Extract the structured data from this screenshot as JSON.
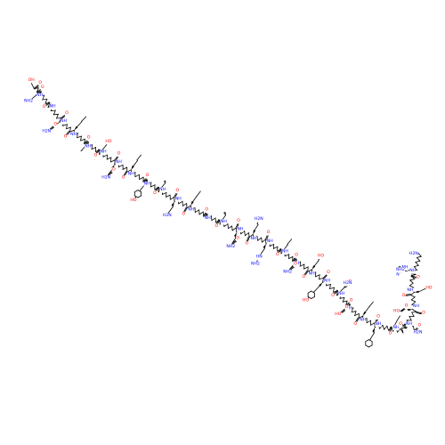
{
  "image_kind": "skeletal structural formula of a linear peptide",
  "colors": {
    "background": "#ffffff",
    "bond": "#000000",
    "oxygen": "#ff0000",
    "nitrogen": "#0000ff"
  },
  "labels": {
    "carboxyl_oh": "OH",
    "carbonyl_o": "O",
    "amine_nh": "NH",
    "amine_n": "N",
    "amine_h2n": "H2N",
    "amine_nh2": "NH2",
    "hydroxyl_oh": "HO",
    "guanidine_hn": "HN",
    "imidazole_nh": "NH"
  },
  "backbone": [
    {
      "kind": "C-terminal carboxyl",
      "o1": "OH",
      "o2": "O"
    },
    {
      "kind": "residue",
      "side": "aminobutyl",
      "amine": "NH2"
    },
    {
      "kind": "residue",
      "side": "none"
    },
    {
      "kind": "residue",
      "side": "carboxamidomethyl",
      "amine": "H2N"
    },
    {
      "kind": "residue",
      "side": "isobutyl"
    },
    {
      "kind": "residue",
      "side": "sec-butyl"
    },
    {
      "kind": "residue",
      "side": "hydroxymethyl",
      "hydroxyl": "HO"
    },
    {
      "kind": "residue",
      "side": "carboxamidomethyl",
      "amine": "H2N"
    },
    {
      "kind": "residue",
      "side": "isobutyl"
    },
    {
      "kind": "residue",
      "side": "4-hydroxybenzyl",
      "hydroxyl": "HO"
    },
    {
      "kind": "residue",
      "side": "alkenyl chain (alpha-methyl)"
    },
    {
      "kind": "residue",
      "side": "aminobutyl",
      "amine": "H2N"
    },
    {
      "kind": "residue",
      "side": "isopropyl"
    },
    {
      "kind": "residue",
      "side": "methyl"
    },
    {
      "kind": "residue",
      "side": "alkenyl chain (alpha-methyl)"
    },
    {
      "kind": "residue",
      "side": "carboxamidoethyl",
      "amine": "NH2"
    },
    {
      "kind": "residue",
      "side": "aminobutyl",
      "amine": "H2N"
    },
    {
      "kind": "residue",
      "side": "guanidinopropyl",
      "amine": "NH2",
      "imine": "HN"
    },
    {
      "kind": "residue",
      "side": "isobutyl"
    },
    {
      "kind": "residue",
      "side": "carboxamidoethyl",
      "amine": "NH2"
    },
    {
      "kind": "residue",
      "side": "1-hydroxyethyl",
      "hydroxyl": "HO"
    },
    {
      "kind": "residue",
      "side": "4-hydroxybenzyl",
      "hydroxyl": "HO"
    },
    {
      "kind": "residue",
      "side": "carboxamidomethyl",
      "amine": "H2N"
    },
    {
      "kind": "residue",
      "side": "carboxymethyl",
      "hydroxyl": "HO"
    },
    {
      "kind": "residue",
      "side": "isopropyl"
    },
    {
      "kind": "residue",
      "side": "benzyl"
    },
    {
      "kind": "residue",
      "side": "isopropyl"
    },
    {
      "kind": "residue",
      "side": "carboxamidomethyl",
      "amine": "H2N"
    },
    {
      "kind": "residue",
      "side": "carboxymethyl",
      "hydroxyl": "HO"
    },
    {
      "kind": "residue",
      "side": "hydroxymethyl",
      "hydroxyl": "HO"
    },
    {
      "kind": "N-terminal residue",
      "side": "imidazolylmethyl",
      "amine": "NH2",
      "ring_nh": "NH"
    }
  ]
}
